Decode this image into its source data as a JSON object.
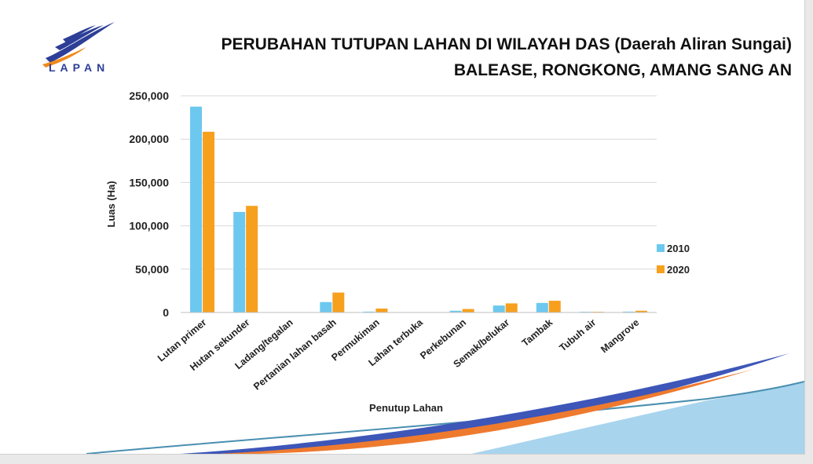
{
  "logo": {
    "text": "LAPAN",
    "name": "lapan-logo"
  },
  "title": {
    "line1": "PERUBAHAN TUTUPAN LAHAN DI WILAYAH DAS (Daerah Aliran Sungai)",
    "line2": "BALEASE, RONGKONG, AMANG SANG AN"
  },
  "colors": {
    "series_2010": "#6dc8ef",
    "series_2020": "#f7a01e",
    "grid": "#d9d9d9",
    "logo_blue": "#2d3e97",
    "logo_orange": "#f08a1c"
  },
  "chart_data": {
    "type": "bar",
    "xlabel": "Penutup Lahan",
    "ylabel": "Luas (Ha)",
    "ylim": [
      0,
      250000
    ],
    "yticks": [
      0,
      50000,
      100000,
      150000,
      200000,
      250000
    ],
    "ytick_labels": [
      "0",
      "50,000",
      "100,000",
      "150,000",
      "200,000",
      "250,000"
    ],
    "grid": true,
    "legend_position": "right",
    "categories": [
      "Lutan primer",
      "Hutan sekunder",
      "Ladang/tegalan",
      "Pertanian lahan basah",
      "Permukiman",
      "Lahan terbuka",
      "Perkebunan",
      "Semak/belukar",
      "Tambak",
      "Tubuh air",
      "Mangrove"
    ],
    "series": [
      {
        "name": "2010",
        "values": [
          237500,
          116000,
          0,
          12000,
          1000,
          0,
          2000,
          8000,
          11000,
          800,
          1000
        ]
      },
      {
        "name": "2020",
        "values": [
          208500,
          123000,
          0,
          23000,
          4500,
          0,
          4000,
          10500,
          13500,
          800,
          2000
        ]
      }
    ]
  }
}
